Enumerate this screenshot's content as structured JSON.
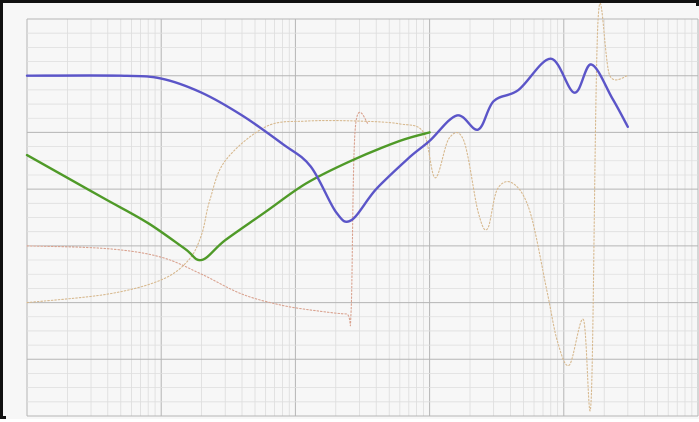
{
  "chart_data": {
    "type": "line",
    "title": "",
    "xlabel": "",
    "ylabel": "",
    "x_scale": "log",
    "xlim": [
      1,
      100000
    ],
    "ylim": [
      0,
      7
    ],
    "grid": true,
    "legend": "none",
    "y_ticks_left": [
      "",
      "",
      "",
      "",
      "",
      ""
    ],
    "series": [
      {
        "color": "#5b55c8",
        "style": "solid",
        "points": [
          [
            1,
            6
          ],
          [
            5,
            6
          ],
          [
            10,
            5.95
          ],
          [
            20,
            5.7
          ],
          [
            40,
            5.3
          ],
          [
            80,
            4.8
          ],
          [
            130,
            4.4
          ],
          [
            200,
            3.6
          ],
          [
            260,
            3.45
          ],
          [
            400,
            4
          ],
          [
            700,
            4.55
          ],
          [
            1000,
            4.85
          ],
          [
            1600,
            5.3
          ],
          [
            2300,
            5.05
          ],
          [
            3000,
            5.55
          ],
          [
            4600,
            5.75
          ],
          [
            8000,
            6.3
          ],
          [
            12000,
            5.7
          ],
          [
            16000,
            6.2
          ],
          [
            23000,
            5.6
          ],
          [
            30000,
            5.1
          ]
        ]
      },
      {
        "color": "#4f9a28",
        "style": "solid",
        "points": [
          [
            1,
            4.6
          ],
          [
            2,
            4.2
          ],
          [
            4,
            3.8
          ],
          [
            8,
            3.4
          ],
          [
            15,
            2.95
          ],
          [
            20,
            2.75
          ],
          [
            30,
            3.1
          ],
          [
            60,
            3.6
          ],
          [
            120,
            4.1
          ],
          [
            260,
            4.5
          ],
          [
            600,
            4.85
          ],
          [
            1000,
            5.0
          ]
        ]
      },
      {
        "color": "#d7b98f",
        "style": "dotted",
        "points": [
          [
            1,
            2.0
          ],
          [
            4,
            2.15
          ],
          [
            10,
            2.4
          ],
          [
            16,
            2.75
          ],
          [
            20,
            3.2
          ],
          [
            23,
            3.8
          ],
          [
            30,
            4.5
          ],
          [
            60,
            5.1
          ],
          [
            120,
            5.2
          ],
          [
            300,
            5.2
          ],
          [
            600,
            5.15
          ],
          [
            900,
            5.0
          ],
          [
            1100,
            4.2
          ],
          [
            1400,
            4.9
          ],
          [
            1800,
            4.85
          ],
          [
            2300,
            3.6
          ],
          [
            2700,
            3.3
          ],
          [
            3200,
            4.0
          ],
          [
            4200,
            4.1
          ],
          [
            5600,
            3.6
          ],
          [
            7500,
            2.2
          ],
          [
            9000,
            1.3
          ],
          [
            11000,
            0.9
          ],
          [
            14000,
            1.7
          ],
          [
            16000,
            0.3
          ],
          [
            18000,
            7.0
          ],
          [
            22000,
            6.0
          ],
          [
            30000,
            6.0
          ]
        ]
      },
      {
        "color": "#d9a28f",
        "style": "dotted",
        "points": [
          [
            1,
            3.0
          ],
          [
            4,
            2.95
          ],
          [
            10,
            2.8
          ],
          [
            20,
            2.5
          ],
          [
            40,
            2.15
          ],
          [
            80,
            1.95
          ],
          [
            150,
            1.85
          ],
          [
            240,
            1.8
          ],
          [
            260,
            1.85
          ],
          [
            280,
            5.1
          ],
          [
            350,
            5.15
          ]
        ]
      }
    ]
  }
}
